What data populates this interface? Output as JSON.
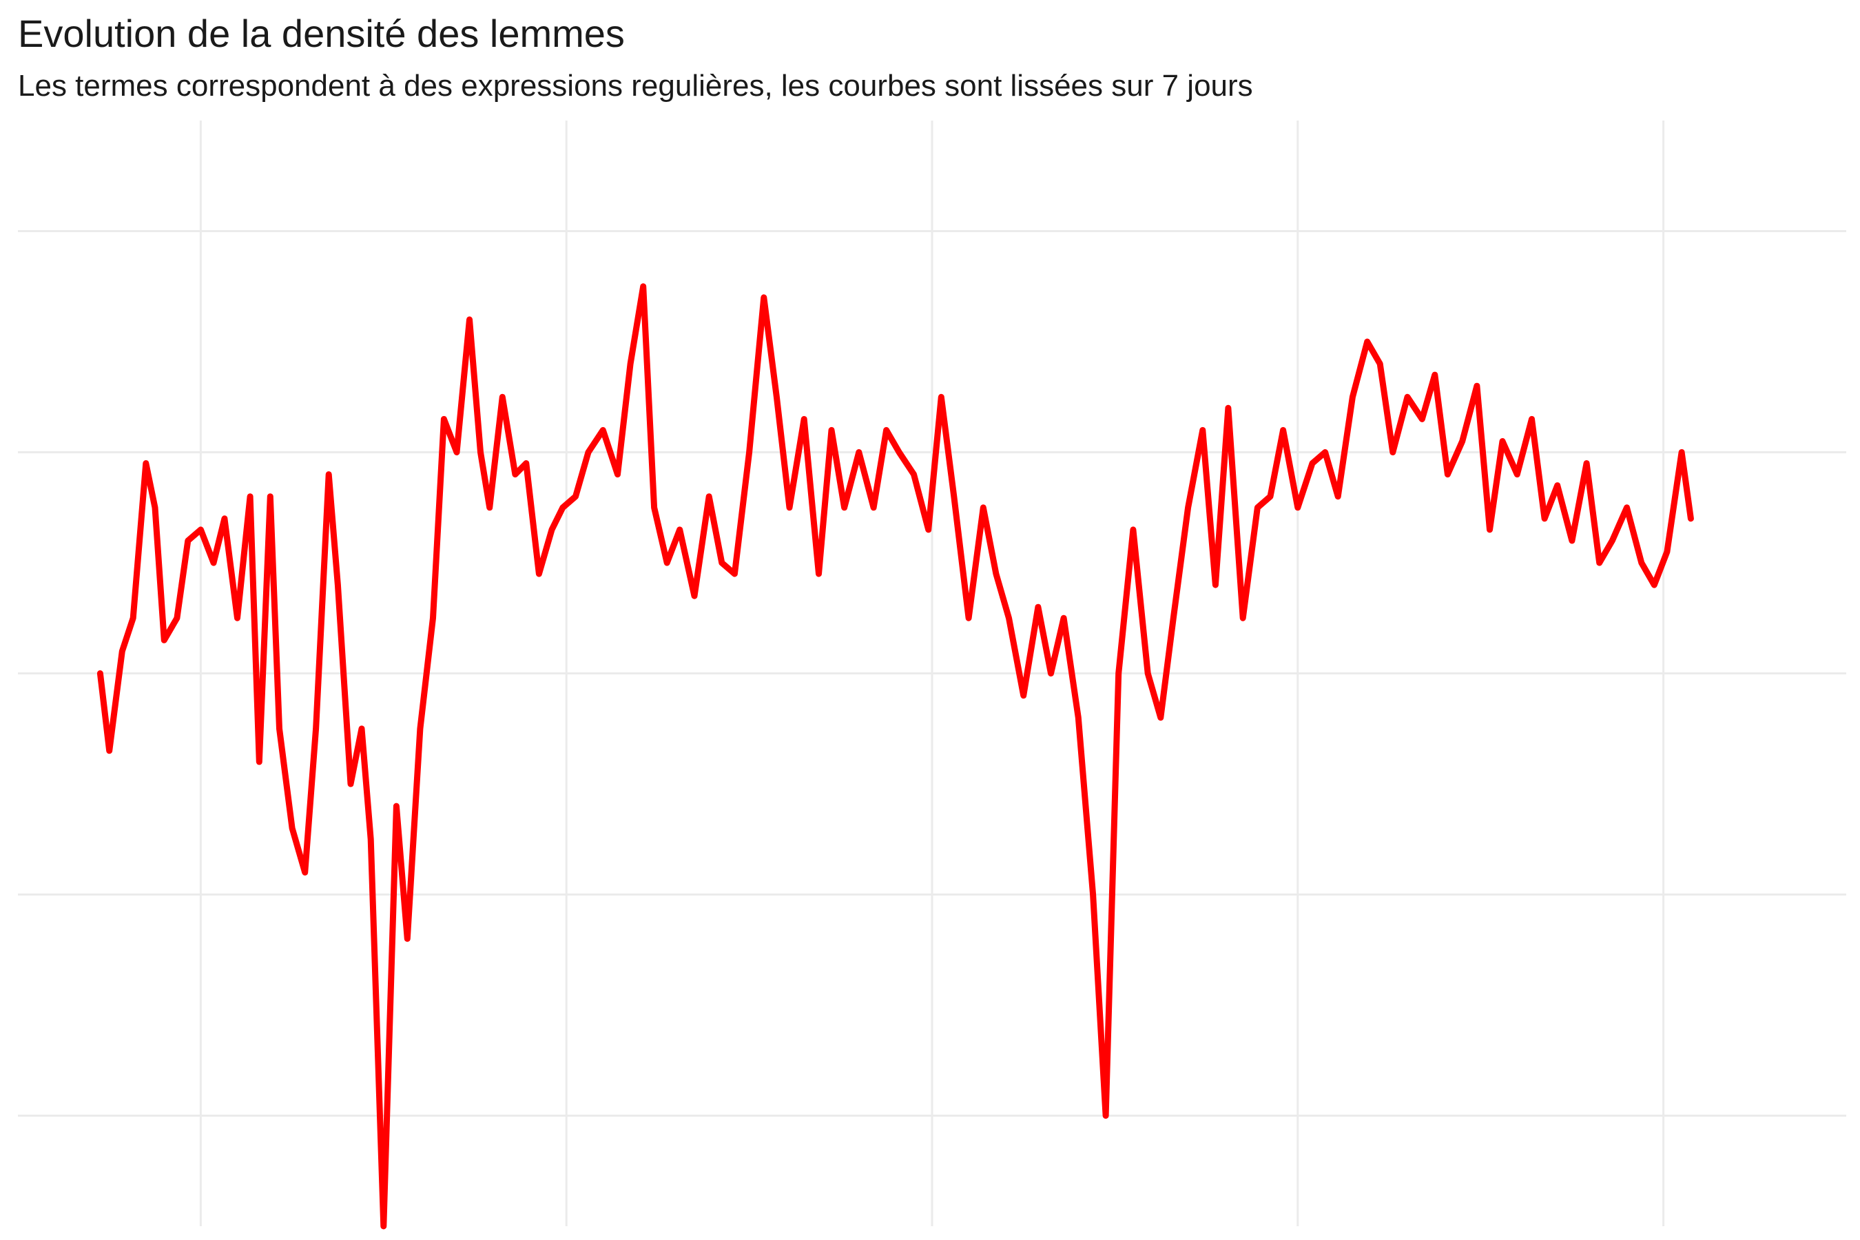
{
  "chart_data": {
    "type": "line",
    "title": "Evolution de la densité des lemmes",
    "subtitle": "Les termes correspondent à des expressions regulières, les courbes sont lissées sur 7 jours",
    "xlabel": "",
    "ylabel": "",
    "grid": true,
    "legend": "none",
    "x_tick_labels": [],
    "y_tick_labels": [],
    "xlim": [
      0,
      10
    ],
    "ylim": [
      0,
      10
    ],
    "x_gridlines": [
      1,
      3,
      5,
      7,
      9
    ],
    "y_gridlines": [
      1,
      3,
      5,
      7,
      9
    ],
    "series": [
      {
        "color": "#FF0000",
        "x": [
          0.45,
          0.5,
          0.57,
          0.63,
          0.7,
          0.75,
          0.8,
          0.87,
          0.93,
          1.0,
          1.07,
          1.13,
          1.2,
          1.27,
          1.32,
          1.38,
          1.43,
          1.5,
          1.57,
          1.63,
          1.7,
          1.75,
          1.82,
          1.88,
          1.93,
          2.0,
          2.07,
          2.13,
          2.2,
          2.27,
          2.33,
          2.4,
          2.47,
          2.53,
          2.58,
          2.65,
          2.72,
          2.78,
          2.85,
          2.92,
          2.98,
          3.05,
          3.12,
          3.2,
          3.28,
          3.35,
          3.42,
          3.48,
          3.55,
          3.62,
          3.7,
          3.78,
          3.85,
          3.92,
          4.0,
          4.08,
          4.15,
          4.22,
          4.3,
          4.38,
          4.45,
          4.52,
          4.6,
          4.68,
          4.75,
          4.82,
          4.9,
          4.98,
          5.05,
          5.12,
          5.2,
          5.28,
          5.35,
          5.42,
          5.5,
          5.58,
          5.65,
          5.72,
          5.8,
          5.88,
          5.95,
          6.02,
          6.1,
          6.18,
          6.25,
          6.32,
          6.4,
          6.48,
          6.55,
          6.62,
          6.7,
          6.78,
          6.85,
          6.92,
          7.0,
          7.08,
          7.15,
          7.22,
          7.3,
          7.38,
          7.45,
          7.52,
          7.6,
          7.68,
          7.75,
          7.82,
          7.9,
          7.98,
          8.05,
          8.12,
          8.2,
          8.28,
          8.35,
          8.42,
          8.5,
          8.58,
          8.65,
          8.72,
          8.8,
          8.88,
          8.95,
          9.02,
          9.1,
          9.15
        ],
        "y": [
          5.0,
          4.3,
          5.2,
          5.5,
          6.9,
          6.5,
          5.3,
          5.5,
          6.2,
          6.3,
          6.0,
          6.4,
          5.5,
          6.6,
          4.2,
          6.6,
          4.5,
          3.6,
          3.2,
          4.5,
          6.8,
          5.8,
          4.0,
          4.5,
          3.5,
          0.0,
          3.8,
          2.6,
          4.5,
          5.5,
          7.3,
          7.0,
          8.2,
          7.0,
          6.5,
          7.5,
          6.8,
          6.9,
          5.9,
          6.3,
          6.5,
          6.6,
          7.0,
          7.2,
          6.8,
          7.8,
          8.5,
          6.5,
          6.0,
          6.3,
          5.7,
          6.6,
          6.0,
          5.9,
          7.0,
          8.4,
          7.5,
          6.5,
          7.3,
          5.9,
          7.2,
          6.5,
          7.0,
          6.5,
          7.2,
          7.0,
          6.8,
          6.3,
          7.5,
          6.6,
          5.5,
          6.5,
          5.9,
          5.5,
          4.8,
          5.6,
          5.0,
          5.5,
          4.6,
          3.0,
          1.0,
          5.0,
          6.3,
          5.0,
          4.6,
          5.5,
          6.5,
          7.2,
          5.8,
          7.4,
          5.5,
          6.5,
          6.6,
          7.2,
          6.5,
          6.9,
          7.0,
          6.6,
          7.5,
          8.0,
          7.8,
          7.0,
          7.5,
          7.3,
          7.7,
          6.8,
          7.1,
          7.6,
          6.3,
          7.1,
          6.8,
          7.3,
          6.4,
          6.7,
          6.2,
          6.9,
          6.0,
          6.2,
          6.5,
          6.0,
          5.8,
          6.1,
          7.0,
          6.4
        ]
      }
    ]
  }
}
